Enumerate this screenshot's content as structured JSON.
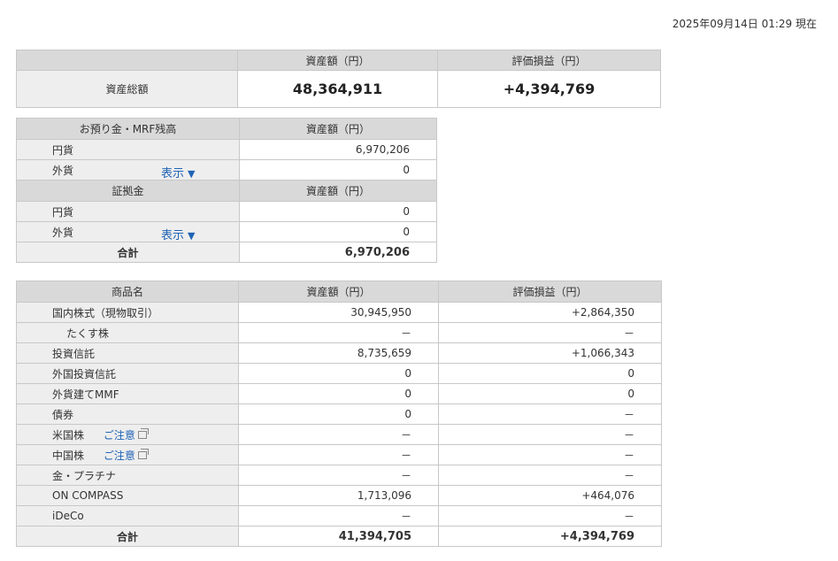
{
  "timestamp": "2025年09月14日 01:29 現在",
  "summary": {
    "header_amount": "資産額（円）",
    "header_pl": "評価損益（円）",
    "row_label": "資産総額",
    "total_amount": "48,364,911",
    "total_pl": "+4,394,769"
  },
  "deposit": {
    "header_label": "お預り金・MRF残高",
    "header_amount": "資産額（円）",
    "rows": [
      {
        "label": "円貨",
        "value": "6,970,206"
      },
      {
        "label": "外貨",
        "value": "0",
        "link": "表示"
      }
    ],
    "margin_header": "証拠金",
    "margin_header_amount": "資産額（円）",
    "margin_rows": [
      {
        "label": "円貨",
        "value": "0"
      },
      {
        "label": "外貨",
        "value": "0",
        "link": "表示"
      }
    ],
    "total_label": "合計",
    "total_value": "6,970,206",
    "show_triangle": "▼"
  },
  "products": {
    "header_name": "商品名",
    "header_amount": "資産額（円）",
    "header_pl": "評価損益（円）",
    "caution_label": "ご注意",
    "rows": [
      {
        "label": "国内株式（現物取引）",
        "amount": "30,945,950",
        "pl": "+2,864,350"
      },
      {
        "label": "たくす株",
        "amount": "－",
        "pl": "－"
      },
      {
        "label": "投資信託",
        "amount": "8,735,659",
        "pl": "+1,066,343"
      },
      {
        "label": "外国投資信託",
        "amount": "0",
        "pl": "0"
      },
      {
        "label": "外貨建てMMF",
        "amount": "0",
        "pl": "0"
      },
      {
        "label": "債券",
        "amount": "0",
        "pl": "－"
      },
      {
        "label": "米国株",
        "amount": "－",
        "pl": "－"
      },
      {
        "label": "中国株",
        "amount": "－",
        "pl": "－"
      },
      {
        "label": "金・プラチナ",
        "amount": "－",
        "pl": "－"
      },
      {
        "label": "ON COMPASS",
        "amount": "1,713,096",
        "pl": "+464,076"
      },
      {
        "label": "iDeCo",
        "amount": "－",
        "pl": "－"
      }
    ],
    "total_label": "合計",
    "total_amount": "41,394,705",
    "total_pl": "+4,394,769"
  },
  "icons": {
    "external_link": "external-link-icon",
    "dropdown": "triangle-down-icon"
  }
}
